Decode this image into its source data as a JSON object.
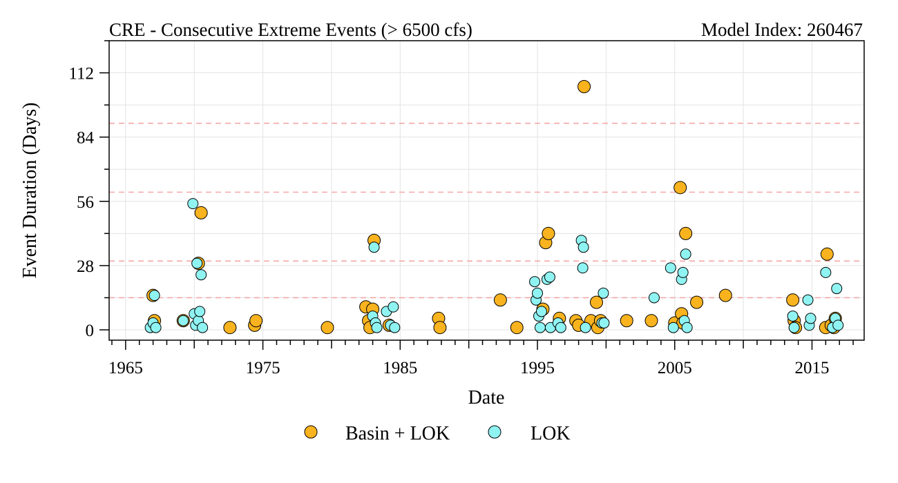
{
  "chart_data": {
    "type": "scatter",
    "title": "CRE - Consecutive Extreme Events (> 6500 cfs)",
    "title_right": "Model Index: 260467",
    "xlabel": "Date",
    "ylabel": "Event Duration (Days)",
    "xlim": [
      1963.8,
      2018.8
    ],
    "ylim": [
      -4.5,
      126
    ],
    "xticks": [
      1965,
      1975,
      1985,
      1995,
      2005,
      2015
    ],
    "yticks": [
      0,
      28,
      56,
      84,
      112
    ],
    "reference_lines_y": [
      14,
      30,
      60,
      90
    ],
    "grid": true,
    "legend_position": "bottom",
    "series": [
      {
        "name": "Basin + LOK",
        "color": "#f9b31e",
        "points": [
          [
            1967.0,
            15
          ],
          [
            1967.1,
            4
          ],
          [
            1969.2,
            4
          ],
          [
            1970.3,
            29
          ],
          [
            1970.5,
            51
          ],
          [
            1972.6,
            1
          ],
          [
            1974.4,
            2
          ],
          [
            1974.5,
            4
          ],
          [
            1979.7,
            1
          ],
          [
            1982.5,
            10
          ],
          [
            1982.7,
            4
          ],
          [
            1982.8,
            1
          ],
          [
            1983.0,
            9
          ],
          [
            1983.1,
            39
          ],
          [
            1984.2,
            2
          ],
          [
            1987.8,
            5
          ],
          [
            1987.9,
            1
          ],
          [
            1992.3,
            13
          ],
          [
            1993.5,
            1
          ],
          [
            1995.4,
            9
          ],
          [
            1995.6,
            38
          ],
          [
            1995.8,
            42
          ],
          [
            1996.6,
            5
          ],
          [
            1997.8,
            4
          ],
          [
            1998.0,
            2
          ],
          [
            1998.4,
            106
          ],
          [
            1998.9,
            4
          ],
          [
            1999.3,
            12
          ],
          [
            1999.4,
            1
          ],
          [
            1999.6,
            4
          ],
          [
            2001.5,
            4
          ],
          [
            2003.3,
            4
          ],
          [
            2005.0,
            3
          ],
          [
            2005.4,
            62
          ],
          [
            2005.5,
            7
          ],
          [
            2005.6,
            3
          ],
          [
            2005.8,
            42
          ],
          [
            2006.6,
            12
          ],
          [
            2008.7,
            15
          ],
          [
            2013.6,
            13
          ],
          [
            2013.7,
            4
          ],
          [
            2013.8,
            1
          ],
          [
            2016.0,
            1
          ],
          [
            2016.1,
            33
          ],
          [
            2016.4,
            2
          ],
          [
            2016.6,
            1
          ],
          [
            2016.7,
            5
          ]
        ]
      },
      {
        "name": "LOK",
        "color": "#8ff3f2",
        "points": [
          [
            1966.8,
            1
          ],
          [
            1967.0,
            3
          ],
          [
            1967.1,
            15
          ],
          [
            1967.2,
            1
          ],
          [
            1969.2,
            4
          ],
          [
            1969.9,
            55
          ],
          [
            1970.0,
            7
          ],
          [
            1970.1,
            2
          ],
          [
            1970.2,
            29
          ],
          [
            1970.3,
            4
          ],
          [
            1970.4,
            8
          ],
          [
            1970.5,
            24
          ],
          [
            1970.6,
            1
          ],
          [
            1983.0,
            6
          ],
          [
            1983.1,
            36
          ],
          [
            1983.2,
            3
          ],
          [
            1983.3,
            1
          ],
          [
            1984.0,
            8
          ],
          [
            1984.3,
            2
          ],
          [
            1984.5,
            10
          ],
          [
            1984.6,
            1
          ],
          [
            1994.8,
            21
          ],
          [
            1994.9,
            13
          ],
          [
            1995.0,
            16
          ],
          [
            1995.1,
            6
          ],
          [
            1995.2,
            1
          ],
          [
            1995.3,
            8
          ],
          [
            1995.7,
            22
          ],
          [
            1995.9,
            23
          ],
          [
            1995.95,
            1
          ],
          [
            1996.5,
            3
          ],
          [
            1996.7,
            1
          ],
          [
            1998.2,
            39
          ],
          [
            1998.3,
            27
          ],
          [
            1998.35,
            36
          ],
          [
            1998.5,
            1
          ],
          [
            1999.7,
            3
          ],
          [
            1999.8,
            16
          ],
          [
            1999.85,
            3
          ],
          [
            2003.5,
            14
          ],
          [
            2004.7,
            27
          ],
          [
            2004.9,
            1
          ],
          [
            2005.5,
            22
          ],
          [
            2005.6,
            25
          ],
          [
            2005.7,
            4
          ],
          [
            2005.8,
            33
          ],
          [
            2005.9,
            1
          ],
          [
            2013.6,
            6
          ],
          [
            2013.7,
            1
          ],
          [
            2014.7,
            13
          ],
          [
            2014.8,
            2
          ],
          [
            2014.9,
            5
          ],
          [
            2016.0,
            25
          ],
          [
            2016.5,
            1
          ],
          [
            2016.7,
            5
          ],
          [
            2016.8,
            18
          ],
          [
            2016.9,
            2
          ]
        ]
      }
    ]
  }
}
